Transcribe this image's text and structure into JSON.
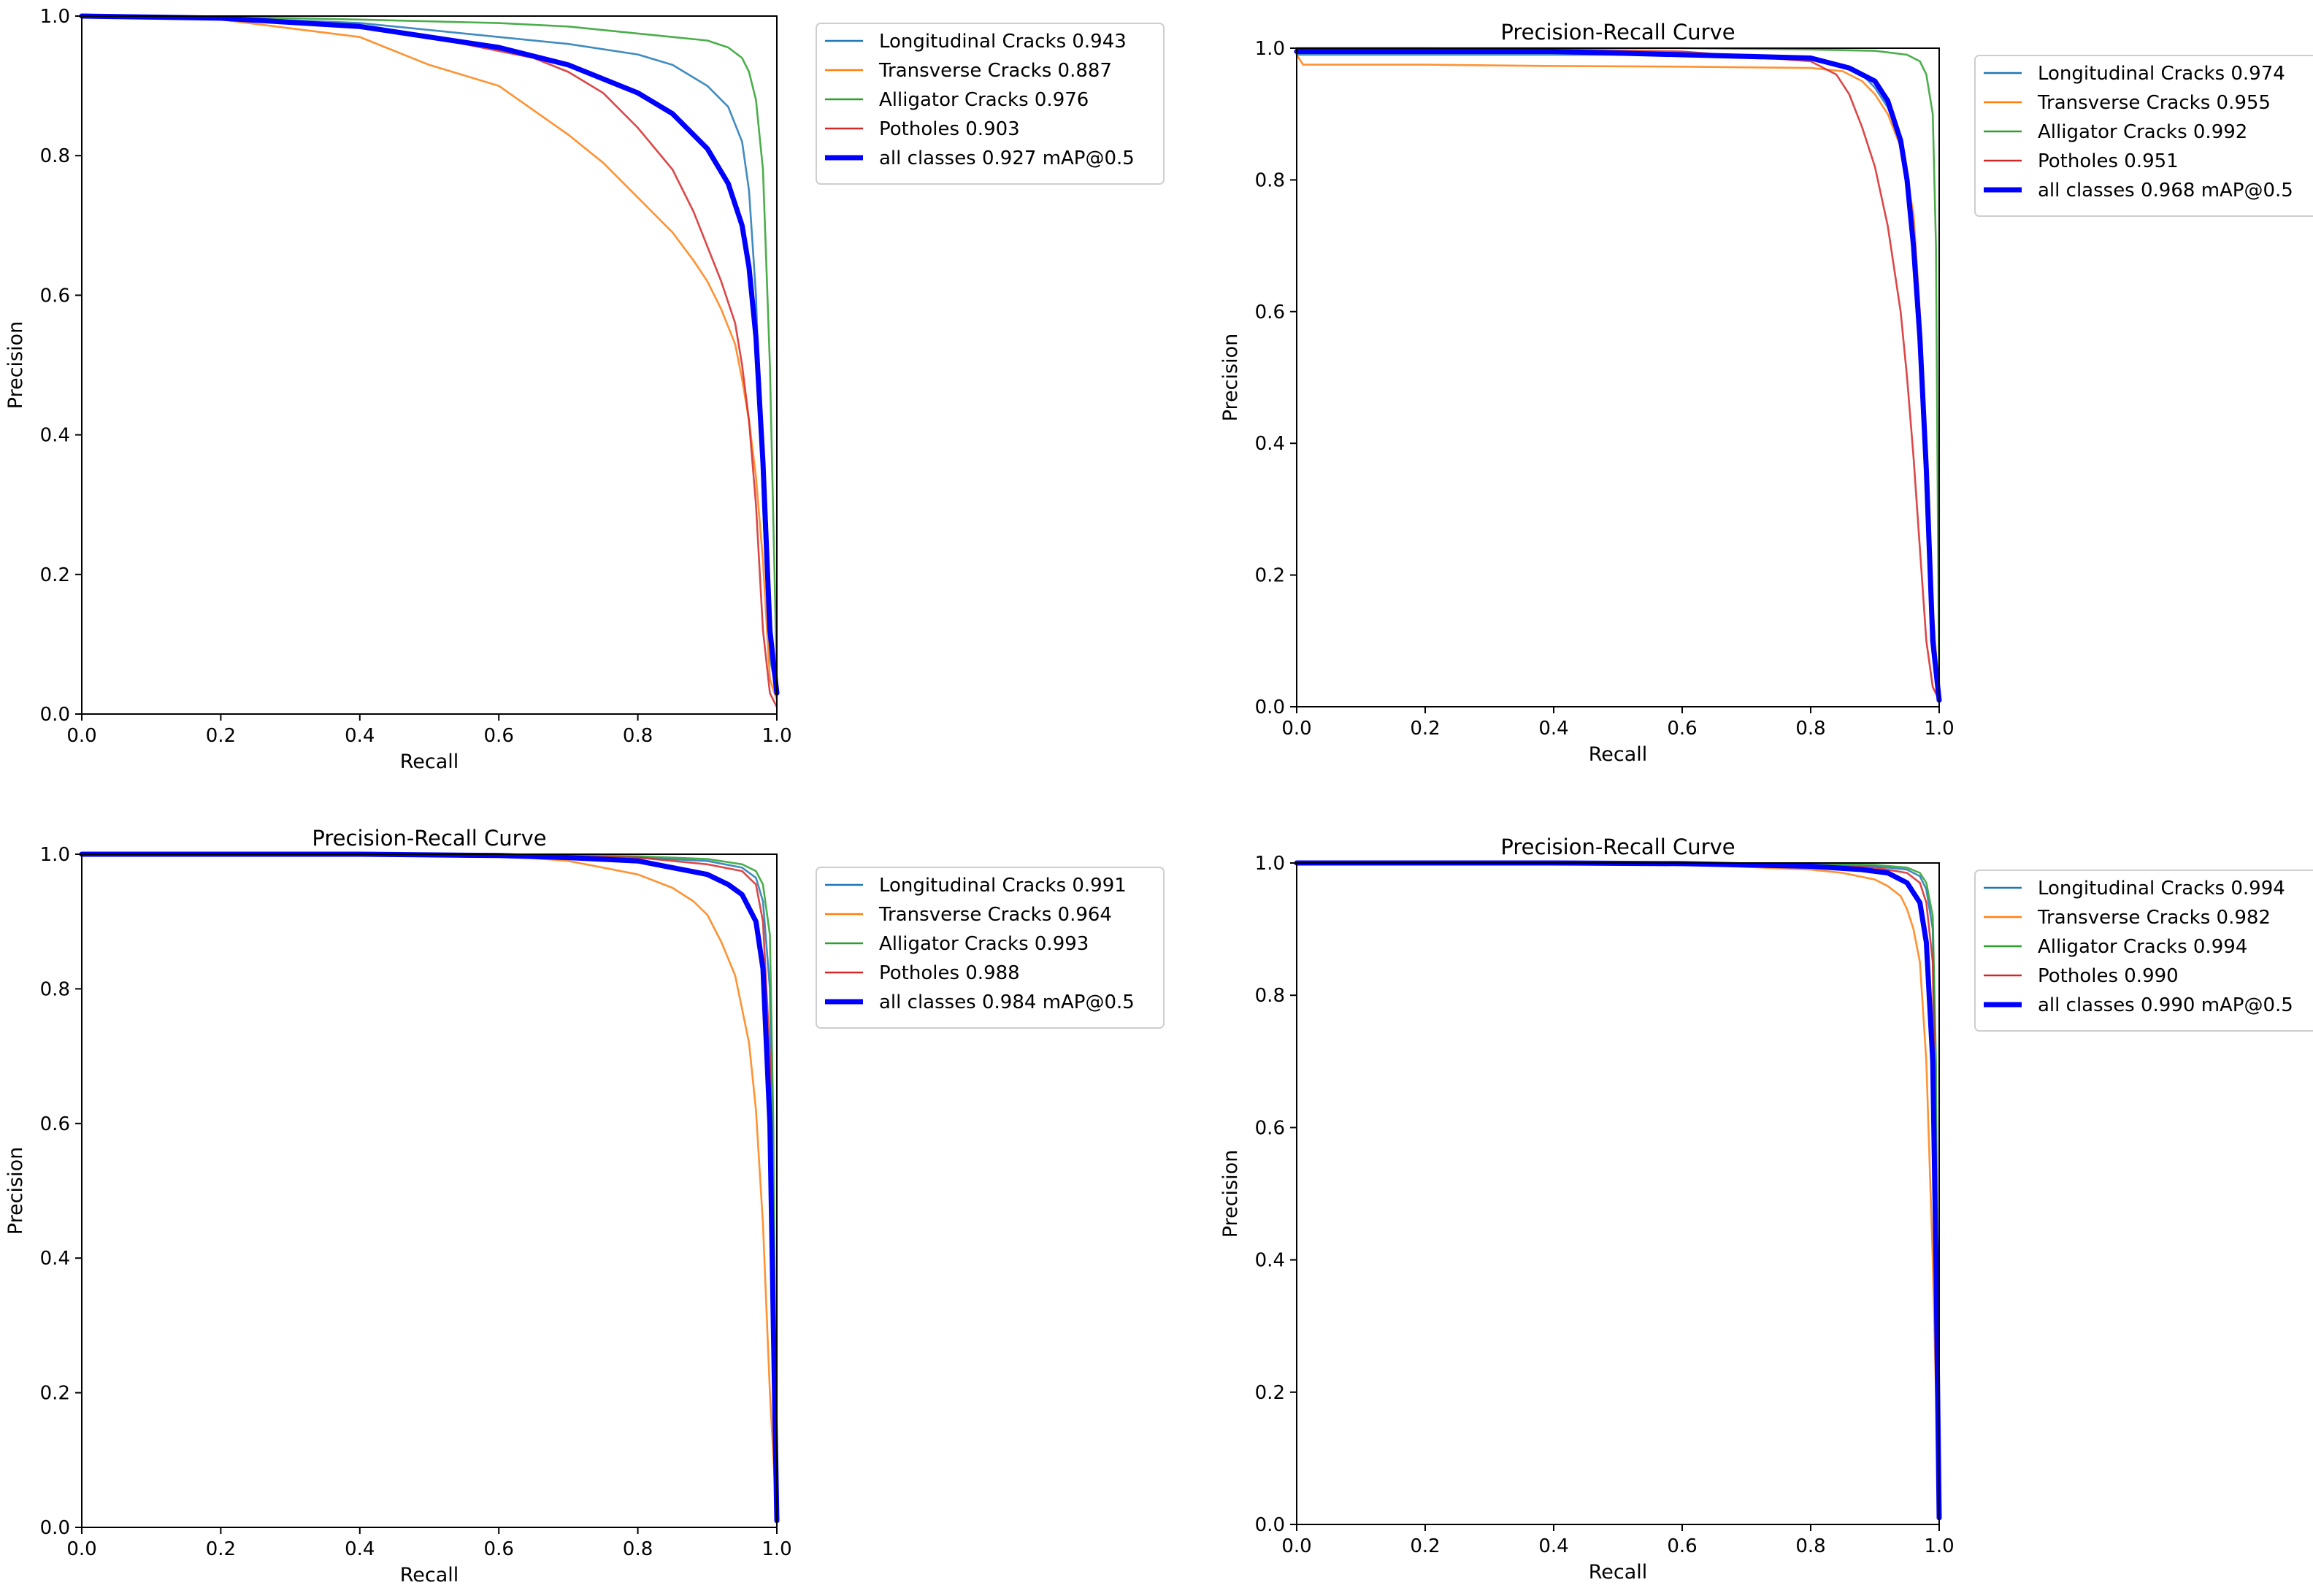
{
  "colors": {
    "Longitudinal Cracks": "#1f77b4",
    "Transverse Cracks": "#ff7f0e",
    "Alligator Cracks": "#2ca02c",
    "Potholes": "#d62728",
    "all classes": "#0000ff"
  },
  "chart_data": [
    {
      "type": "line",
      "title": "",
      "xlabel": "Recall",
      "ylabel": "Precision",
      "xlim": [
        0,
        1
      ],
      "ylim": [
        0,
        1
      ],
      "xticks": [
        "0.0",
        "0.2",
        "0.4",
        "0.6",
        "0.8",
        "1.0"
      ],
      "yticks": [
        "0.0",
        "0.2",
        "0.4",
        "0.6",
        "0.8",
        "1.0"
      ],
      "grid": false,
      "legend_position": "outside-right-top",
      "series": [
        {
          "name": "Longitudinal Cracks 0.943",
          "x": [
            0,
            0.2,
            0.4,
            0.5,
            0.6,
            0.7,
            0.8,
            0.85,
            0.9,
            0.93,
            0.95,
            0.96,
            0.97,
            0.98,
            0.99,
            1.0
          ],
          "y": [
            1,
            0.998,
            0.99,
            0.98,
            0.97,
            0.96,
            0.945,
            0.93,
            0.9,
            0.87,
            0.82,
            0.75,
            0.6,
            0.3,
            0.08,
            0.03
          ]
        },
        {
          "name": "Transverse Cracks 0.887",
          "x": [
            0,
            0.2,
            0.4,
            0.5,
            0.6,
            0.7,
            0.75,
            0.8,
            0.85,
            0.88,
            0.9,
            0.92,
            0.94,
            0.95,
            0.96,
            0.97,
            0.98,
            0.99,
            1.0
          ],
          "y": [
            1,
            0.995,
            0.97,
            0.93,
            0.9,
            0.83,
            0.79,
            0.74,
            0.69,
            0.65,
            0.62,
            0.58,
            0.53,
            0.48,
            0.42,
            0.34,
            0.22,
            0.05,
            0.02
          ]
        },
        {
          "name": "Alligator Cracks 0.976",
          "x": [
            0,
            0.2,
            0.4,
            0.6,
            0.7,
            0.8,
            0.85,
            0.9,
            0.93,
            0.95,
            0.96,
            0.97,
            0.98,
            0.99,
            1.0
          ],
          "y": [
            1,
            0.999,
            0.995,
            0.99,
            0.985,
            0.975,
            0.97,
            0.965,
            0.955,
            0.94,
            0.92,
            0.88,
            0.78,
            0.5,
            0.05
          ]
        },
        {
          "name": "Potholes 0.903",
          "x": [
            0,
            0.2,
            0.4,
            0.5,
            0.6,
            0.65,
            0.7,
            0.75,
            0.8,
            0.85,
            0.88,
            0.9,
            0.92,
            0.94,
            0.95,
            0.96,
            0.97,
            0.98,
            0.99,
            1.0
          ],
          "y": [
            1,
            0.998,
            0.985,
            0.97,
            0.95,
            0.94,
            0.92,
            0.89,
            0.84,
            0.78,
            0.72,
            0.67,
            0.62,
            0.56,
            0.5,
            0.42,
            0.3,
            0.12,
            0.03,
            0.01
          ]
        },
        {
          "name": "all classes 0.927 mAP@0.5",
          "x": [
            0,
            0.2,
            0.4,
            0.5,
            0.6,
            0.7,
            0.8,
            0.85,
            0.9,
            0.93,
            0.95,
            0.96,
            0.97,
            0.98,
            0.99,
            1.0
          ],
          "y": [
            1,
            0.997,
            0.985,
            0.97,
            0.955,
            0.93,
            0.89,
            0.86,
            0.81,
            0.76,
            0.7,
            0.64,
            0.54,
            0.36,
            0.12,
            0.03
          ]
        }
      ]
    },
    {
      "type": "line",
      "title": "Precision-Recall Curve",
      "xlabel": "Recall",
      "ylabel": "Precision",
      "xlim": [
        0,
        1
      ],
      "ylim": [
        0,
        1
      ],
      "xticks": [
        "0.0",
        "0.2",
        "0.4",
        "0.6",
        "0.8",
        "1.0"
      ],
      "yticks": [
        "0.0",
        "0.2",
        "0.4",
        "0.6",
        "0.8",
        "1.0"
      ],
      "grid": false,
      "legend_position": "outside-right-top",
      "series": [
        {
          "name": "Longitudinal Cracks 0.974",
          "x": [
            0,
            0.2,
            0.4,
            0.6,
            0.8,
            0.85,
            0.88,
            0.9,
            0.92,
            0.94,
            0.95,
            0.96,
            0.97,
            0.98,
            0.99,
            1.0
          ],
          "y": [
            0.99,
            0.99,
            0.99,
            0.99,
            0.985,
            0.975,
            0.96,
            0.94,
            0.91,
            0.86,
            0.8,
            0.72,
            0.58,
            0.4,
            0.15,
            0.01
          ]
        },
        {
          "name": "Transverse Cracks 0.955",
          "x": [
            0,
            0.01,
            0.2,
            0.4,
            0.6,
            0.8,
            0.85,
            0.88,
            0.9,
            0.92,
            0.94,
            0.96,
            0.97,
            0.98,
            0.99,
            1.0
          ],
          "y": [
            0.99,
            0.975,
            0.975,
            0.973,
            0.972,
            0.97,
            0.965,
            0.95,
            0.93,
            0.9,
            0.85,
            0.75,
            0.6,
            0.4,
            0.15,
            0.01
          ]
        },
        {
          "name": "Alligator Cracks 0.992",
          "x": [
            0,
            0.2,
            0.4,
            0.6,
            0.8,
            0.9,
            0.95,
            0.97,
            0.98,
            0.99,
            0.995,
            1.0
          ],
          "y": [
            1,
            1,
            1,
            1,
            0.998,
            0.996,
            0.99,
            0.98,
            0.96,
            0.9,
            0.7,
            0.01
          ]
        },
        {
          "name": "Potholes 0.951",
          "x": [
            0,
            0.2,
            0.4,
            0.6,
            0.8,
            0.84,
            0.86,
            0.88,
            0.9,
            0.92,
            0.94,
            0.95,
            0.96,
            0.97,
            0.98,
            0.99,
            1.0
          ],
          "y": [
            1,
            1,
            0.998,
            0.995,
            0.98,
            0.96,
            0.93,
            0.88,
            0.82,
            0.73,
            0.6,
            0.5,
            0.38,
            0.24,
            0.1,
            0.03,
            0.01
          ]
        },
        {
          "name": "all classes 0.968 mAP@0.5",
          "x": [
            0,
            0.2,
            0.4,
            0.6,
            0.8,
            0.86,
            0.9,
            0.92,
            0.94,
            0.95,
            0.96,
            0.97,
            0.98,
            0.99,
            1.0
          ],
          "y": [
            0.995,
            0.995,
            0.995,
            0.99,
            0.985,
            0.97,
            0.95,
            0.92,
            0.86,
            0.8,
            0.7,
            0.56,
            0.36,
            0.1,
            0.01
          ]
        }
      ]
    },
    {
      "type": "line",
      "title": "Precision-Recall Curve",
      "xlabel": "Recall",
      "ylabel": "Precision",
      "xlim": [
        0,
        1
      ],
      "ylim": [
        0,
        1
      ],
      "xticks": [
        "0.0",
        "0.2",
        "0.4",
        "0.6",
        "0.8",
        "1.0"
      ],
      "yticks": [
        "0.0",
        "0.2",
        "0.4",
        "0.6",
        "0.8",
        "1.0"
      ],
      "grid": false,
      "legend_position": "outside-right-top",
      "series": [
        {
          "name": "Longitudinal Cracks 0.991",
          "x": [
            0,
            0.2,
            0.4,
            0.6,
            0.8,
            0.9,
            0.95,
            0.97,
            0.98,
            0.99,
            0.995,
            1.0
          ],
          "y": [
            1,
            1,
            1,
            1,
            0.995,
            0.99,
            0.98,
            0.965,
            0.93,
            0.8,
            0.5,
            0.02
          ]
        },
        {
          "name": "Transverse Cracks 0.964",
          "x": [
            0,
            0.2,
            0.4,
            0.6,
            0.7,
            0.75,
            0.8,
            0.85,
            0.88,
            0.9,
            0.92,
            0.94,
            0.95,
            0.96,
            0.97,
            0.98,
            0.99,
            1.0
          ],
          "y": [
            1,
            1,
            1,
            0.998,
            0.99,
            0.98,
            0.97,
            0.95,
            0.93,
            0.91,
            0.87,
            0.82,
            0.77,
            0.72,
            0.62,
            0.45,
            0.2,
            0.01
          ]
        },
        {
          "name": "Alligator Cracks 0.993",
          "x": [
            0,
            0.2,
            0.4,
            0.6,
            0.8,
            0.9,
            0.95,
            0.97,
            0.98,
            0.99,
            0.995,
            1.0
          ],
          "y": [
            1,
            1,
            1,
            1,
            0.997,
            0.993,
            0.985,
            0.975,
            0.955,
            0.88,
            0.6,
            0.01
          ]
        },
        {
          "name": "Potholes 0.988",
          "x": [
            0,
            0.2,
            0.4,
            0.6,
            0.8,
            0.9,
            0.95,
            0.97,
            0.98,
            0.99,
            0.995,
            1.0
          ],
          "y": [
            1,
            1,
            1,
            1,
            0.995,
            0.985,
            0.975,
            0.955,
            0.9,
            0.7,
            0.4,
            0.01
          ]
        },
        {
          "name": "all classes 0.984 mAP@0.5",
          "x": [
            0,
            0.2,
            0.4,
            0.6,
            0.7,
            0.8,
            0.85,
            0.9,
            0.93,
            0.95,
            0.97,
            0.98,
            0.99,
            0.995,
            1.0
          ],
          "y": [
            1,
            1,
            1,
            0.998,
            0.995,
            0.99,
            0.98,
            0.97,
            0.955,
            0.94,
            0.9,
            0.83,
            0.6,
            0.3,
            0.01
          ]
        }
      ]
    },
    {
      "type": "line",
      "title": "Precision-Recall Curve",
      "xlabel": "Recall",
      "ylabel": "Precision",
      "xlim": [
        0,
        1
      ],
      "ylim": [
        0,
        1
      ],
      "xticks": [
        "0.0",
        "0.2",
        "0.4",
        "0.6",
        "0.8",
        "1.0"
      ],
      "yticks": [
        "0.0",
        "0.2",
        "0.4",
        "0.6",
        "0.8",
        "1.0"
      ],
      "grid": false,
      "legend_position": "outside-right-top",
      "series": [
        {
          "name": "Longitudinal Cracks 0.994",
          "x": [
            0,
            0.2,
            0.4,
            0.6,
            0.8,
            0.9,
            0.95,
            0.97,
            0.98,
            0.99,
            0.995,
            1.0
          ],
          "y": [
            1,
            1,
            1,
            1,
            0.998,
            0.995,
            0.99,
            0.98,
            0.96,
            0.9,
            0.6,
            0.01
          ]
        },
        {
          "name": "Transverse Cracks 0.982",
          "x": [
            0,
            0.2,
            0.4,
            0.6,
            0.8,
            0.85,
            0.9,
            0.92,
            0.94,
            0.95,
            0.96,
            0.97,
            0.98,
            0.99,
            0.995,
            1.0
          ],
          "y": [
            1,
            1,
            1,
            0.998,
            0.99,
            0.985,
            0.975,
            0.965,
            0.95,
            0.93,
            0.9,
            0.85,
            0.7,
            0.4,
            0.2,
            0.01
          ]
        },
        {
          "name": "Alligator Cracks 0.994",
          "x": [
            0,
            0.2,
            0.4,
            0.6,
            0.8,
            0.9,
            0.95,
            0.97,
            0.98,
            0.99,
            0.995,
            1.0
          ],
          "y": [
            1,
            1,
            1,
            1,
            0.999,
            0.997,
            0.993,
            0.985,
            0.97,
            0.92,
            0.7,
            0.01
          ]
        },
        {
          "name": "Potholes 0.990",
          "x": [
            0,
            0.2,
            0.4,
            0.6,
            0.8,
            0.9,
            0.95,
            0.97,
            0.98,
            0.99,
            0.995,
            1.0
          ],
          "y": [
            1,
            1,
            1,
            1,
            0.997,
            0.993,
            0.985,
            0.97,
            0.94,
            0.85,
            0.5,
            0.01
          ]
        },
        {
          "name": "all classes 0.990 mAP@0.5",
          "x": [
            0,
            0.2,
            0.4,
            0.6,
            0.8,
            0.88,
            0.92,
            0.95,
            0.97,
            0.98,
            0.99,
            0.995,
            1.0
          ],
          "y": [
            1,
            1,
            1,
            0.999,
            0.995,
            0.99,
            0.985,
            0.97,
            0.94,
            0.88,
            0.7,
            0.4,
            0.01
          ]
        }
      ]
    }
  ]
}
